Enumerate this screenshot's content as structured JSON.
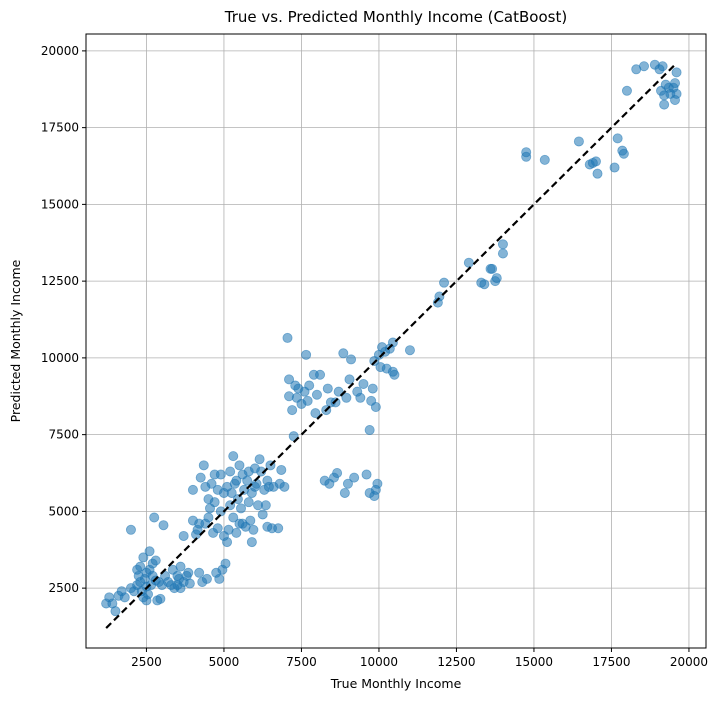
{
  "chart_data": {
    "type": "scatter",
    "title": "True vs. Predicted Monthly Income (CatBoost)",
    "xlabel": "True Monthly Income",
    "ylabel": "Predicted Monthly Income",
    "xlim": [
      550,
      20550
    ],
    "ylim": [
      550,
      20550
    ],
    "xticks": [
      2500,
      5000,
      7500,
      10000,
      12500,
      15000,
      17500,
      20000
    ],
    "yticks": [
      2500,
      5000,
      7500,
      10000,
      12500,
      15000,
      17500,
      20000
    ],
    "xtick_labels": [
      "2500",
      "5000",
      "7500",
      "10000",
      "12500",
      "15000",
      "17500",
      "20000"
    ],
    "ytick_labels": [
      "2500",
      "5000",
      "7500",
      "10000",
      "12500",
      "15000",
      "17500",
      "20000"
    ],
    "grid": true,
    "point_color": "#1f77b4",
    "point_opacity": 0.55,
    "reference_line": {
      "style": "dashed",
      "color": "#000000",
      "from": [
        1200,
        1200
      ],
      "to": [
        19600,
        19600
      ]
    },
    "points": [
      [
        1200,
        2000
      ],
      [
        1300,
        2200
      ],
      [
        1400,
        2000
      ],
      [
        1500,
        1750
      ],
      [
        1600,
        2250
      ],
      [
        1700,
        2400
      ],
      [
        1800,
        2200
      ],
      [
        2000,
        2500
      ],
      [
        2000,
        4400
      ],
      [
        2100,
        2400
      ],
      [
        2200,
        2600
      ],
      [
        2200,
        3100
      ],
      [
        2250,
        2900
      ],
      [
        2300,
        2700
      ],
      [
        2300,
        3200
      ],
      [
        2350,
        2400
      ],
      [
        2400,
        2200
      ],
      [
        2400,
        3500
      ],
      [
        2450,
        2800
      ],
      [
        2500,
        2550
      ],
      [
        2500,
        3000
      ],
      [
        2500,
        2100
      ],
      [
        2550,
        2300
      ],
      [
        2600,
        3100
      ],
      [
        2600,
        3700
      ],
      [
        2650,
        2600
      ],
      [
        2700,
        2900
      ],
      [
        2700,
        3300
      ],
      [
        2750,
        4800
      ],
      [
        2800,
        2750
      ],
      [
        2800,
        3400
      ],
      [
        2850,
        2100
      ],
      [
        2900,
        2700
      ],
      [
        2950,
        2150
      ],
      [
        3000,
        2600
      ],
      [
        3050,
        4550
      ],
      [
        3100,
        2900
      ],
      [
        3200,
        2700
      ],
      [
        3300,
        2600
      ],
      [
        3350,
        3100
      ],
      [
        3400,
        2500
      ],
      [
        3500,
        2600
      ],
      [
        3500,
        2900
      ],
      [
        3550,
        2800
      ],
      [
        3600,
        2500
      ],
      [
        3600,
        3200
      ],
      [
        3700,
        2700
      ],
      [
        3700,
        4200
      ],
      [
        3800,
        2900
      ],
      [
        3850,
        3000
      ],
      [
        3900,
        2650
      ],
      [
        4000,
        4700
      ],
      [
        4000,
        5700
      ],
      [
        4100,
        4250
      ],
      [
        4150,
        4400
      ],
      [
        4200,
        3000
      ],
      [
        4200,
        4600
      ],
      [
        4250,
        6100
      ],
      [
        4300,
        2700
      ],
      [
        4350,
        6500
      ],
      [
        4400,
        4600
      ],
      [
        4400,
        5800
      ],
      [
        4450,
        2800
      ],
      [
        4500,
        4800
      ],
      [
        4500,
        5400
      ],
      [
        4550,
        5100
      ],
      [
        4600,
        5900
      ],
      [
        4650,
        4300
      ],
      [
        4700,
        6200
      ],
      [
        4700,
        5300
      ],
      [
        4750,
        3000
      ],
      [
        4800,
        4450
      ],
      [
        4800,
        5700
      ],
      [
        4850,
        2800
      ],
      [
        4900,
        6200
      ],
      [
        4900,
        5000
      ],
      [
        4950,
        3100
      ],
      [
        5000,
        5600
      ],
      [
        5000,
        4200
      ],
      [
        5050,
        3300
      ],
      [
        5100,
        4000
      ],
      [
        5100,
        5800
      ],
      [
        5150,
        4400
      ],
      [
        5200,
        5200
      ],
      [
        5200,
        6300
      ],
      [
        5250,
        5600
      ],
      [
        5300,
        4800
      ],
      [
        5300,
        6800
      ],
      [
        5350,
        5900
      ],
      [
        5400,
        4300
      ],
      [
        5400,
        6000
      ],
      [
        5450,
        5400
      ],
      [
        5500,
        4600
      ],
      [
        5500,
        6500
      ],
      [
        5550,
        5100
      ],
      [
        5600,
        6200
      ],
      [
        5600,
        4600
      ],
      [
        5650,
        5700
      ],
      [
        5700,
        4500
      ],
      [
        5750,
        6000
      ],
      [
        5800,
        5300
      ],
      [
        5800,
        6300
      ],
      [
        5850,
        4700
      ],
      [
        5900,
        4000
      ],
      [
        5900,
        5600
      ],
      [
        5950,
        4400
      ],
      [
        6000,
        5800
      ],
      [
        6000,
        6400
      ],
      [
        6050,
        5900
      ],
      [
        6100,
        5200
      ],
      [
        6150,
        6700
      ],
      [
        6200,
        6300
      ],
      [
        6250,
        4900
      ],
      [
        6300,
        5700
      ],
      [
        6350,
        5200
      ],
      [
        6400,
        4500
      ],
      [
        6400,
        6000
      ],
      [
        6450,
        5800
      ],
      [
        6500,
        6500
      ],
      [
        6550,
        4450
      ],
      [
        6600,
        5800
      ],
      [
        6750,
        4450
      ],
      [
        6800,
        5900
      ],
      [
        6850,
        6350
      ],
      [
        6950,
        5800
      ],
      [
        7050,
        10650
      ],
      [
        7100,
        8750
      ],
      [
        7100,
        9300
      ],
      [
        7200,
        8300
      ],
      [
        7250,
        7450
      ],
      [
        7300,
        9100
      ],
      [
        7350,
        8700
      ],
      [
        7400,
        9000
      ],
      [
        7500,
        8500
      ],
      [
        7600,
        8900
      ],
      [
        7650,
        10100
      ],
      [
        7700,
        8600
      ],
      [
        7750,
        9100
      ],
      [
        7900,
        9450
      ],
      [
        7950,
        8200
      ],
      [
        8000,
        8800
      ],
      [
        8100,
        9450
      ],
      [
        8250,
        6000
      ],
      [
        8300,
        8300
      ],
      [
        8350,
        9000
      ],
      [
        8400,
        5900
      ],
      [
        8450,
        8550
      ],
      [
        8550,
        6100
      ],
      [
        8600,
        8550
      ],
      [
        8650,
        6250
      ],
      [
        8700,
        8900
      ],
      [
        8850,
        10150
      ],
      [
        8900,
        5600
      ],
      [
        8950,
        8700
      ],
      [
        9000,
        5900
      ],
      [
        9050,
        9300
      ],
      [
        9100,
        9950
      ],
      [
        9200,
        6100
      ],
      [
        9300,
        8900
      ],
      [
        9400,
        8700
      ],
      [
        9500,
        9150
      ],
      [
        9600,
        6200
      ],
      [
        9700,
        5600
      ],
      [
        9700,
        7650
      ],
      [
        9750,
        8600
      ],
      [
        9800,
        9000
      ],
      [
        9850,
        5500
      ],
      [
        9850,
        9900
      ],
      [
        9900,
        5700
      ],
      [
        9900,
        8400
      ],
      [
        9950,
        5900
      ],
      [
        10000,
        10100
      ],
      [
        10050,
        9700
      ],
      [
        10100,
        10350
      ],
      [
        10200,
        10200
      ],
      [
        10250,
        9650
      ],
      [
        10350,
        10300
      ],
      [
        10450,
        10500
      ],
      [
        10450,
        9550
      ],
      [
        10500,
        9450
      ],
      [
        11000,
        10250
      ],
      [
        11900,
        11800
      ],
      [
        11950,
        12000
      ],
      [
        12100,
        12450
      ],
      [
        12900,
        13100
      ],
      [
        13300,
        12450
      ],
      [
        13400,
        12400
      ],
      [
        13600,
        12900
      ],
      [
        13650,
        12900
      ],
      [
        13750,
        12500
      ],
      [
        13800,
        12600
      ],
      [
        14000,
        13700
      ],
      [
        14000,
        13400
      ],
      [
        14750,
        16700
      ],
      [
        14750,
        16550
      ],
      [
        15350,
        16450
      ],
      [
        16450,
        17050
      ],
      [
        16800,
        16300
      ],
      [
        16900,
        16350
      ],
      [
        17000,
        16400
      ],
      [
        17050,
        16000
      ],
      [
        17600,
        16200
      ],
      [
        17700,
        17150
      ],
      [
        17850,
        16750
      ],
      [
        17900,
        16650
      ],
      [
        18000,
        18700
      ],
      [
        18300,
        19400
      ],
      [
        18550,
        19500
      ],
      [
        18900,
        19550
      ],
      [
        19050,
        19400
      ],
      [
        19100,
        18700
      ],
      [
        19150,
        19500
      ],
      [
        19200,
        18550
      ],
      [
        19200,
        18250
      ],
      [
        19250,
        18900
      ],
      [
        19350,
        18800
      ],
      [
        19400,
        18600
      ],
      [
        19500,
        18800
      ],
      [
        19550,
        18400
      ],
      [
        19550,
        18950
      ],
      [
        19600,
        19300
      ],
      [
        19600,
        18600
      ]
    ]
  }
}
